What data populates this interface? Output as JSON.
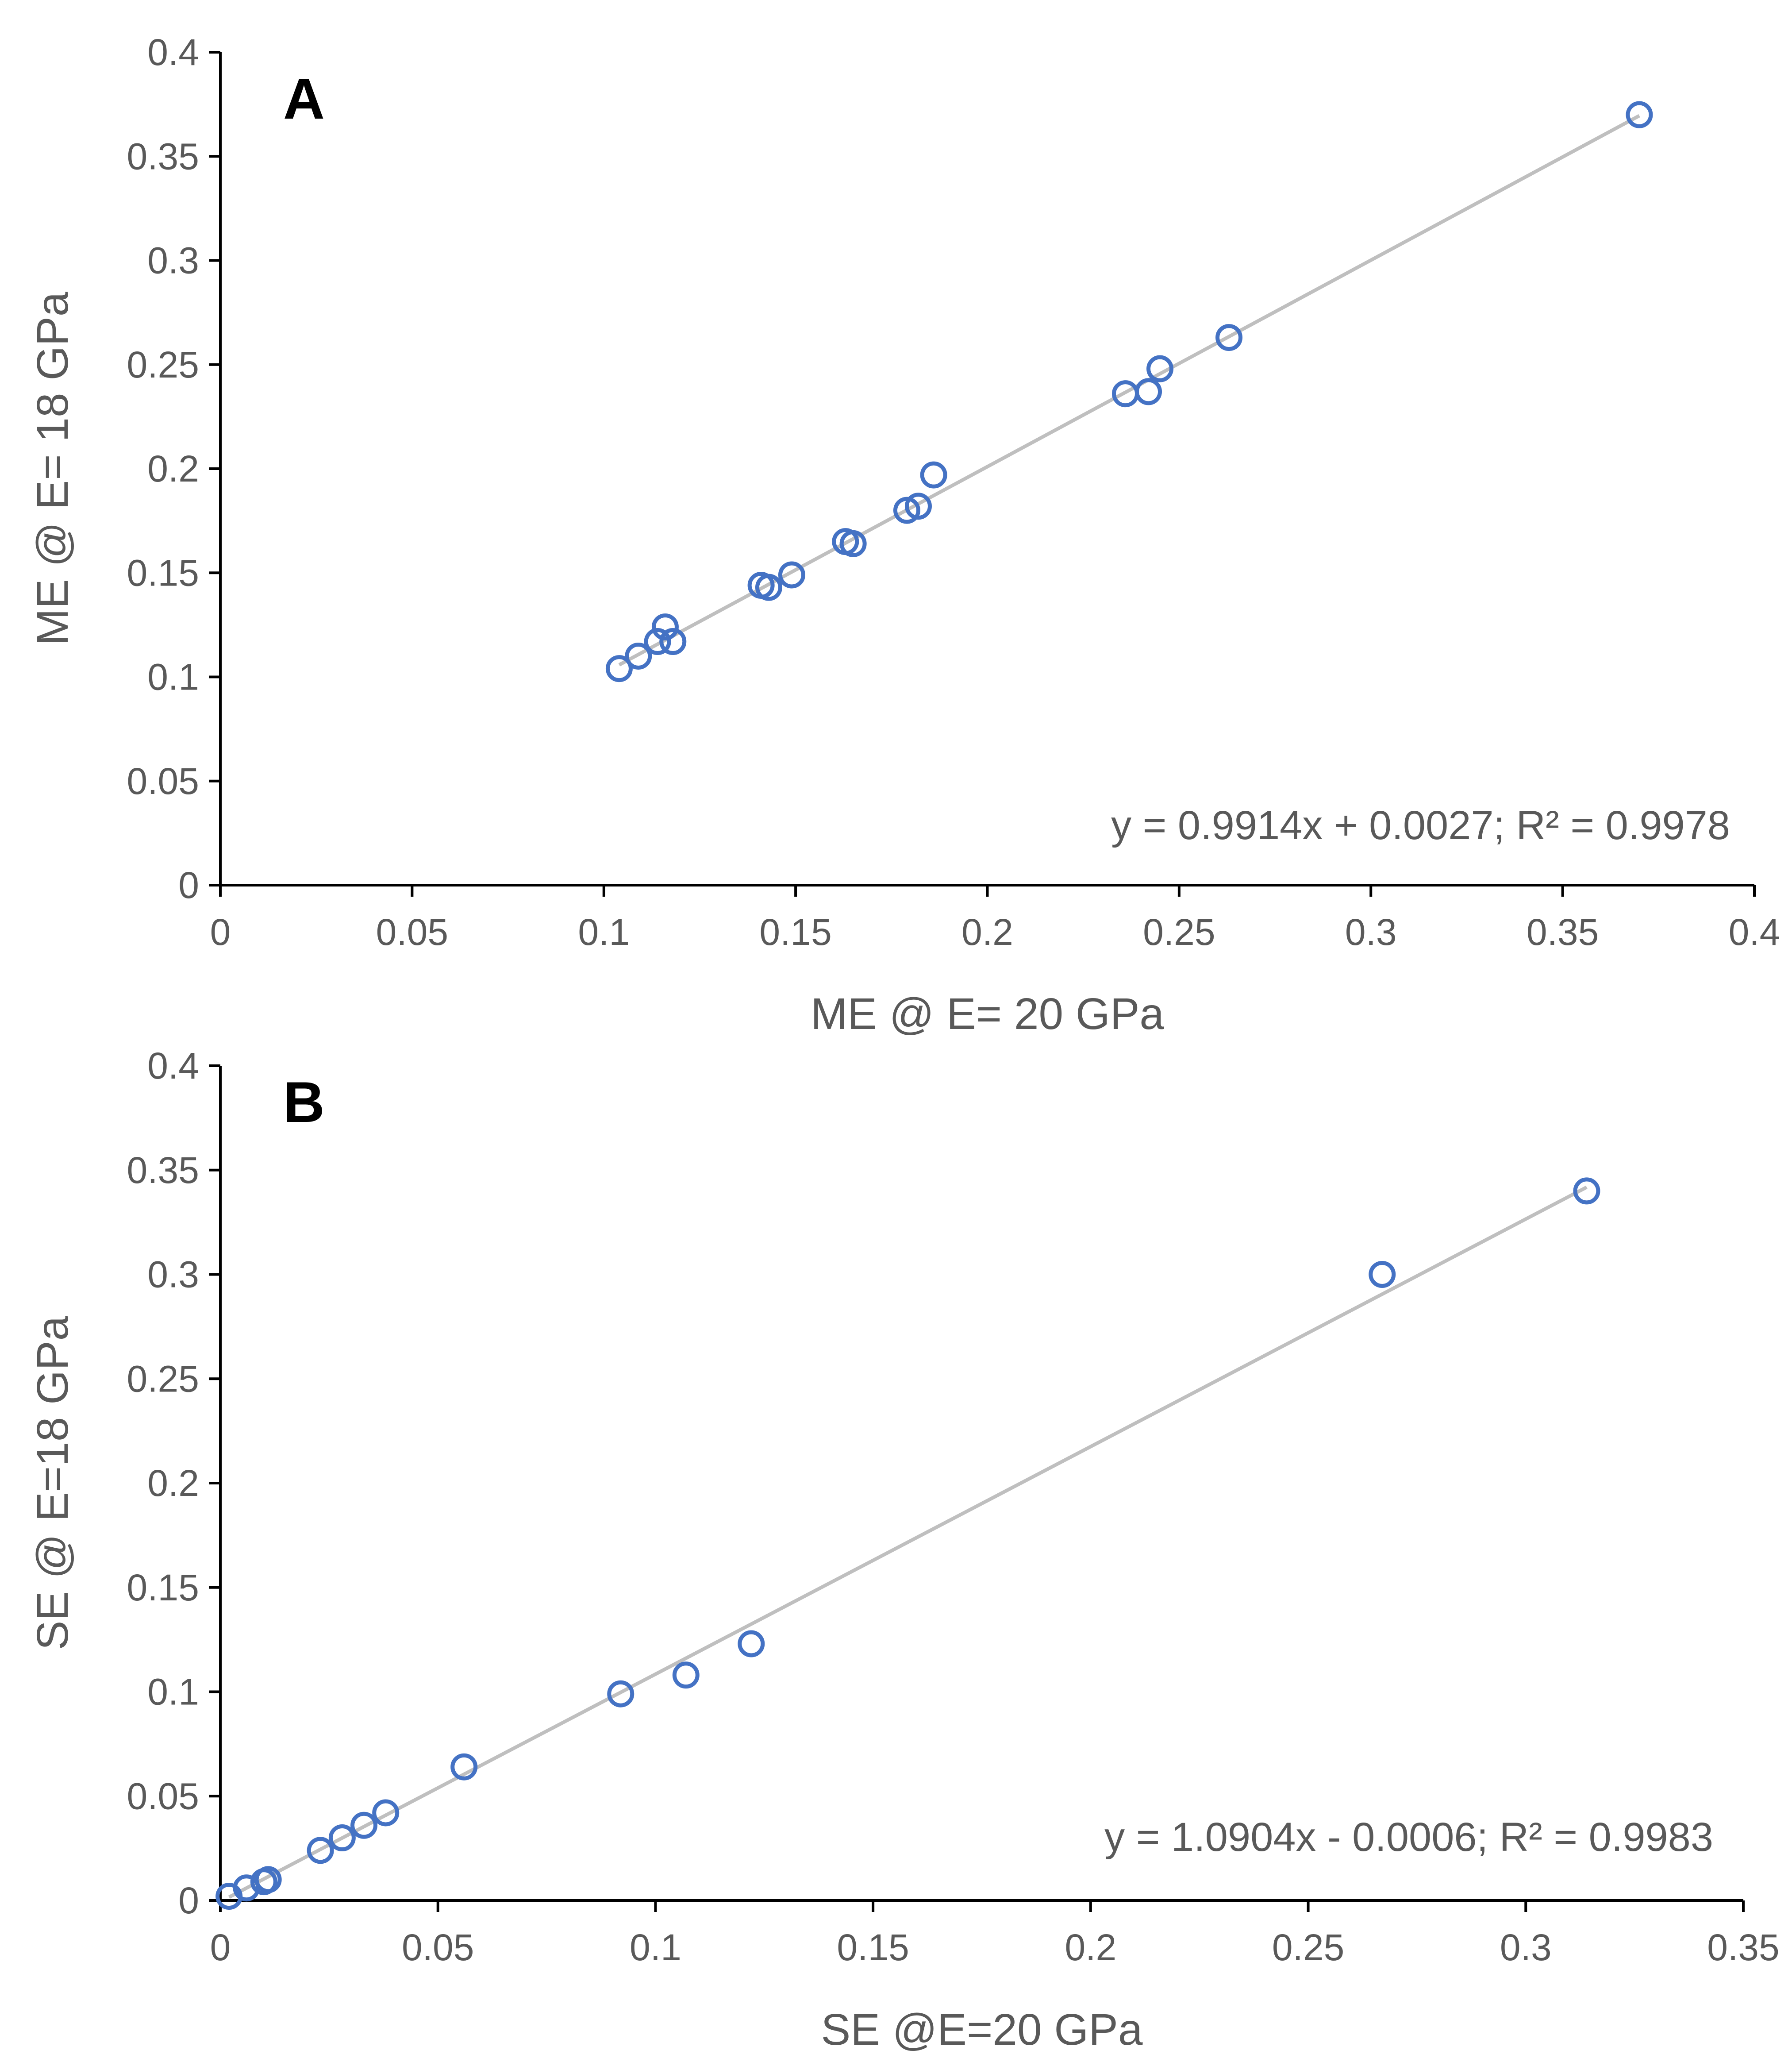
{
  "colors": {
    "marker": "#4472c4",
    "trendline": "#bfbfbf",
    "axis": "#000000",
    "text": "#595959"
  },
  "chart_data": [
    {
      "type": "scatter",
      "panel_label": "A",
      "xlabel": "ME @ E= 20 GPa",
      "ylabel": "ME @ E= 18 GPa",
      "xlim": [
        0,
        0.4
      ],
      "ylim": [
        0,
        0.4
      ],
      "xticks": [
        0,
        0.05,
        0.1,
        0.15,
        0.2,
        0.25,
        0.3,
        0.35,
        0.4
      ],
      "yticks": [
        0,
        0.05,
        0.1,
        0.15,
        0.2,
        0.25,
        0.3,
        0.35,
        0.4
      ],
      "xtick_labels": [
        "0",
        "0.05",
        "0.1",
        "0.15",
        "0.2",
        "0.25",
        "0.3",
        "0.35",
        "0.4"
      ],
      "ytick_labels": [
        "0",
        "0.05",
        "0.1",
        "0.15",
        "0.2",
        "0.25",
        "0.3",
        "0.35",
        "0.4"
      ],
      "grid": false,
      "legend": "none",
      "marker": "open-circle",
      "trendline": {
        "slope": 0.9914,
        "intercept": 0.0027,
        "x_range": [
          0.104,
          0.37
        ]
      },
      "equation": "y = 0.9914x + 0.0027; R² = 0.9978",
      "x": [
        0.104,
        0.109,
        0.114,
        0.116,
        0.118,
        0.141,
        0.143,
        0.149,
        0.163,
        0.165,
        0.179,
        0.182,
        0.186,
        0.236,
        0.242,
        0.245,
        0.263,
        0.37
      ],
      "y": [
        0.104,
        0.11,
        0.117,
        0.124,
        0.117,
        0.144,
        0.143,
        0.149,
        0.165,
        0.164,
        0.18,
        0.182,
        0.197,
        0.236,
        0.237,
        0.248,
        0.263,
        0.37
      ]
    },
    {
      "type": "scatter",
      "panel_label": "B",
      "xlabel": "SE @E=20 GPa",
      "ylabel": "SE @ E=18 GPa",
      "xlim": [
        0,
        0.35
      ],
      "ylim": [
        0,
        0.4
      ],
      "xticks": [
        0,
        0.05,
        0.1,
        0.15,
        0.2,
        0.25,
        0.3,
        0.35
      ],
      "yticks": [
        0,
        0.05,
        0.1,
        0.15,
        0.2,
        0.25,
        0.3,
        0.35,
        0.4
      ],
      "xtick_labels": [
        "0",
        "0.05",
        "0.1",
        "0.15",
        "0.2",
        "0.25",
        "0.3",
        "0.35"
      ],
      "ytick_labels": [
        "0",
        "0.05",
        "0.1",
        "0.15",
        "0.2",
        "0.25",
        "0.3",
        "0.35",
        "0.4"
      ],
      "grid": false,
      "legend": "none",
      "marker": "open-circle",
      "trendline": {
        "slope": 1.0904,
        "intercept": -0.0006,
        "x_range": [
          0.002,
          0.314
        ]
      },
      "equation": "y = 1.0904x - 0.0006; R² = 0.9983",
      "x": [
        0.002,
        0.006,
        0.01,
        0.011,
        0.023,
        0.028,
        0.033,
        0.038,
        0.056,
        0.092,
        0.107,
        0.122,
        0.267,
        0.314
      ],
      "y": [
        0.002,
        0.006,
        0.009,
        0.01,
        0.024,
        0.03,
        0.036,
        0.042,
        0.064,
        0.099,
        0.108,
        0.123,
        0.3,
        0.34
      ]
    }
  ]
}
